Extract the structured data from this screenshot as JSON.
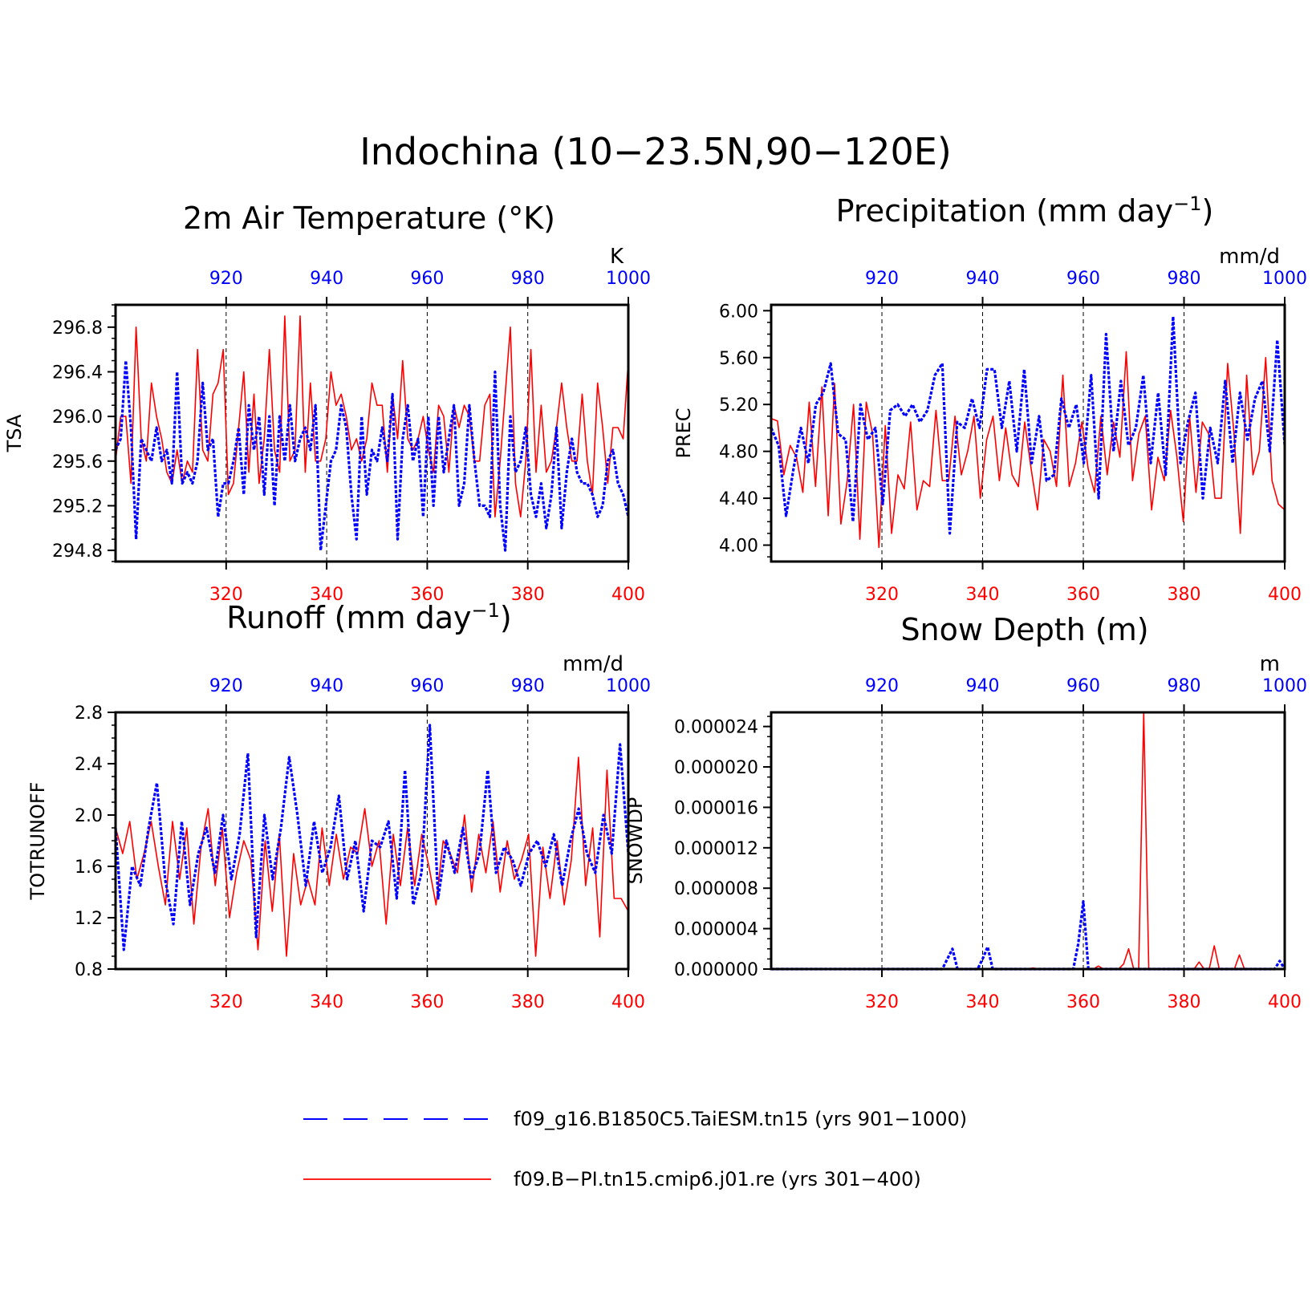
{
  "title": "Indochina (10−23.5N,90−120E)",
  "colors": {
    "series_blue": "#0000ff",
    "series_red": "#ff0000",
    "axis": "#000000"
  },
  "legend": [
    {
      "label": "f09_g16.B1850C5.TaiESM.tn15 (yrs 901−1000)",
      "color": "#0000ff",
      "style": "dashed"
    },
    {
      "label": "f09.B−PI.tn15.cmip6.j01.re (yrs 301−400)",
      "color": "#ff0000",
      "style": "solid"
    }
  ],
  "chart_data": [
    {
      "type": "line",
      "title": "2m Air Temperature (°K)",
      "ylabel": "TSA",
      "units": "K",
      "ylim": [
        294.7,
        297.0
      ],
      "yticks": [
        "294.8",
        "295.2",
        "295.6",
        "296.0",
        "296.4",
        "296.8"
      ],
      "x_bottom": {
        "range": [
          298,
          400
        ],
        "ticks": [
          320,
          340,
          360,
          380,
          400
        ]
      },
      "x_top": {
        "range": [
          898,
          1000
        ],
        "ticks": [
          920,
          940,
          960,
          980,
          1000
        ]
      },
      "grid": "dashed vertical",
      "series": [
        {
          "name": "f09.B−PI.tn15.cmip6.j01.re (yrs 301−400)",
          "axis": "bottom",
          "color": "#ff0000",
          "x_start": 298,
          "values": [
            295.6,
            296.0,
            296.0,
            295.4,
            296.8,
            295.8,
            295.6,
            296.3,
            296.0,
            295.8,
            295.5,
            295.4,
            295.7,
            295.4,
            295.6,
            295.5,
            296.6,
            295.7,
            295.6,
            296.2,
            296.3,
            296.6,
            295.3,
            295.4,
            295.9,
            296.4,
            295.5,
            296.2,
            295.4,
            295.8,
            296.6,
            295.7,
            295.5,
            296.9,
            295.6,
            295.7,
            296.9,
            295.5,
            296.3,
            295.6,
            295.6,
            295.8,
            296.4,
            296.1,
            296.2,
            296.0,
            295.7,
            295.8,
            295.6,
            295.8,
            296.3,
            296.1,
            296.1,
            295.5,
            296.2,
            295.8,
            296.5,
            295.8,
            295.7,
            295.8,
            296.0,
            295.7,
            295.5,
            296.1,
            296.0,
            295.5,
            296.1,
            295.9,
            296.1,
            296.0,
            295.6,
            295.6,
            296.1,
            296.2,
            295.1,
            295.6,
            296.2,
            296.8,
            295.4,
            295.1,
            295.6,
            296.6,
            295.5,
            296.1,
            295.5,
            295.6,
            295.9,
            296.3,
            295.9,
            295.6,
            295.6,
            296.2,
            295.6,
            295.3,
            296.3,
            295.9,
            295.4,
            295.9,
            295.9,
            295.8,
            296.5
          ]
        },
        {
          "name": "f09_g16.B1850C5.TaiESM.tn15 (yrs 901−1000)",
          "axis": "top",
          "color": "#0000ff",
          "x_start": 898,
          "values": [
            295.7,
            295.8,
            296.5,
            295.9,
            294.9,
            295.8,
            295.7,
            295.6,
            295.9,
            295.6,
            295.7,
            295.4,
            296.4,
            295.4,
            295.5,
            295.4,
            295.6,
            296.3,
            295.7,
            295.8,
            295.1,
            295.4,
            295.4,
            295.6,
            295.9,
            295.3,
            296.1,
            295.7,
            296.0,
            295.3,
            296.0,
            295.2,
            296.0,
            295.6,
            296.1,
            295.6,
            295.8,
            295.9,
            295.7,
            296.1,
            294.8,
            295.2,
            295.6,
            295.7,
            296.1,
            295.9,
            295.3,
            294.9,
            296.0,
            295.3,
            295.7,
            295.6,
            295.9,
            295.6,
            296.2,
            294.9,
            295.8,
            296.1,
            295.6,
            295.8,
            295.1,
            296.0,
            295.2,
            296.0,
            295.5,
            295.8,
            296.1,
            295.2,
            295.4,
            296.1,
            295.6,
            295.2,
            295.2,
            295.1,
            296.4,
            295.2,
            294.8,
            296.0,
            295.5,
            295.6,
            295.9,
            295.3,
            295.1,
            295.4,
            295.0,
            295.3,
            295.9,
            295.0,
            295.5,
            295.8,
            295.5,
            295.4,
            295.4,
            295.3,
            295.1,
            295.2,
            295.6,
            295.7,
            295.4,
            295.3,
            295.1
          ]
        }
      ]
    },
    {
      "type": "line",
      "title": "Precipitation (mm day⁻¹)",
      "ylabel": "PREC",
      "units": "mm/d",
      "ylim": [
        3.86,
        6.05
      ],
      "yticks": [
        "4.00",
        "4.40",
        "4.80",
        "5.20",
        "5.60",
        "6.00"
      ],
      "x_bottom": {
        "range": [
          298,
          400
        ],
        "ticks": [
          320,
          340,
          360,
          380,
          400
        ]
      },
      "x_top": {
        "range": [
          898,
          1000
        ],
        "ticks": [
          920,
          940,
          960,
          980,
          1000
        ]
      },
      "grid": "dashed vertical",
      "series": [
        {
          "name": "f09.B−PI.tn15.cmip6.j01.re (yrs 301−400)",
          "axis": "bottom",
          "color": "#ff0000",
          "x_start": 298,
          "values": [
            5.08,
            5.06,
            4.6,
            4.85,
            4.75,
            4.45,
            5.22,
            4.5,
            5.35,
            4.25,
            5.38,
            4.18,
            4.55,
            5.2,
            4.05,
            5.22,
            4.95,
            3.98,
            5.02,
            4.1,
            4.6,
            4.48,
            5.05,
            4.3,
            4.55,
            4.5,
            5.15,
            4.55,
            4.55,
            5.1,
            4.6,
            4.8,
            5.1,
            4.4,
            4.9,
            5.1,
            4.55,
            5.0,
            4.6,
            4.5,
            5.05,
            4.65,
            4.3,
            4.9,
            4.8,
            4.5,
            5.45,
            4.5,
            4.7,
            5.05,
            4.65,
            4.45,
            5.1,
            4.6,
            5.05,
            4.75,
            5.65,
            4.55,
            4.95,
            5.1,
            4.3,
            4.75,
            4.55,
            5.15,
            4.75,
            4.2,
            5.1,
            4.45,
            5.05,
            4.95,
            4.4,
            4.4,
            5.55,
            4.95,
            4.1,
            5.45,
            4.6,
            4.8,
            5.6,
            4.55,
            4.35,
            4.3
          ]
        },
        {
          "name": "f09_g16.B1850C5.TaiESM.tn15 (yrs 901−1000)",
          "axis": "top",
          "color": "#0000ff",
          "x_start": 898,
          "values": [
            5.0,
            4.85,
            4.25,
            4.65,
            5.0,
            4.7,
            5.2,
            5.3,
            5.55,
            4.95,
            4.9,
            4.2,
            5.2,
            4.9,
            5.0,
            4.35,
            5.15,
            5.2,
            5.1,
            5.2,
            5.05,
            5.15,
            5.45,
            5.55,
            4.1,
            5.05,
            5.0,
            5.25,
            5.0,
            5.5,
            5.5,
            5.0,
            5.4,
            4.8,
            5.5,
            4.7,
            5.1,
            4.55,
            4.6,
            5.25,
            5.0,
            5.2,
            4.7,
            5.45,
            4.4,
            5.8,
            4.8,
            5.4,
            4.85,
            5.0,
            5.45,
            4.7,
            5.3,
            4.6,
            5.95,
            4.7,
            5.05,
            5.3,
            4.4,
            5.0,
            4.7,
            5.4,
            4.7,
            5.3,
            4.9,
            5.25,
            5.4,
            4.8,
            5.75,
            4.85
          ]
        }
      ]
    },
    {
      "type": "line",
      "title": "Runoff (mm day⁻¹)",
      "ylabel": "TOTRUNOFF",
      "units": "mm/d",
      "ylim": [
        0.8,
        2.8
      ],
      "yticks": [
        "0.8",
        "1.2",
        "1.6",
        "2.0",
        "2.4",
        "2.8"
      ],
      "x_bottom": {
        "range": [
          298,
          400
        ],
        "ticks": [
          320,
          340,
          360,
          380,
          400
        ]
      },
      "x_top": {
        "range": [
          898,
          1000
        ],
        "ticks": [
          920,
          940,
          960,
          980,
          1000
        ]
      },
      "grid": "dashed vertical",
      "series": [
        {
          "name": "f09.B−PI.tn15.cmip6.j01.re (yrs 301−400)",
          "axis": "bottom",
          "color": "#ff0000",
          "x_start": 298,
          "values": [
            1.9,
            1.7,
            1.95,
            1.5,
            1.7,
            1.95,
            1.6,
            1.3,
            1.95,
            1.5,
            1.9,
            1.15,
            1.75,
            2.05,
            1.45,
            1.9,
            1.2,
            1.55,
            1.8,
            1.65,
            0.95,
            1.8,
            1.25,
            1.85,
            0.9,
            1.7,
            1.3,
            1.5,
            1.3,
            1.9,
            1.45,
            1.85,
            1.5,
            1.75,
            1.7,
            2.05,
            1.6,
            1.8,
            1.15,
            1.85,
            1.45,
            1.9,
            1.45,
            1.85,
            1.6,
            1.3,
            1.8,
            1.7,
            1.55,
            2.0,
            1.4,
            1.85,
            1.55,
            1.95,
            1.4,
            1.8,
            1.5,
            1.65,
            1.85,
            0.9,
            1.75,
            1.35,
            1.8,
            1.3,
            1.65,
            2.45,
            1.45,
            1.9,
            1.05,
            2.35,
            1.35,
            1.35,
            1.25
          ]
        },
        {
          "name": "f09_g16.B1850C5.TaiESM.tn15 (yrs 901−1000)",
          "axis": "top",
          "color": "#0000ff",
          "x_start": 898,
          "values": [
            1.9,
            0.95,
            1.6,
            1.45,
            1.9,
            2.25,
            1.5,
            1.15,
            1.95,
            1.3,
            1.7,
            1.9,
            1.55,
            2.0,
            1.5,
            1.85,
            2.48,
            1.05,
            2.0,
            1.5,
            1.9,
            2.45,
            2.0,
            1.45,
            1.95,
            1.55,
            1.75,
            2.15,
            1.5,
            1.8,
            1.25,
            1.8,
            1.75,
            1.95,
            1.35,
            2.35,
            1.3,
            1.55,
            2.7,
            1.35,
            1.8,
            1.55,
            1.9,
            1.5,
            1.7,
            2.35,
            1.55,
            1.75,
            1.65,
            1.45,
            1.7,
            1.8,
            1.6,
            1.85,
            1.45,
            1.8,
            2.05,
            1.7,
            1.55,
            2.0,
            1.7,
            2.55,
            1.7
          ]
        }
      ]
    },
    {
      "type": "line",
      "title": "Snow Depth (m)",
      "ylabel": "SNOWDP",
      "units": "m",
      "ylim": [
        0.0,
        2.54e-05
      ],
      "yticks": [
        "0.000000",
        "0.000004",
        "0.000008",
        "0.000012",
        "0.000016",
        "0.000020",
        "0.000024"
      ],
      "x_bottom": {
        "range": [
          298,
          400
        ],
        "ticks": [
          320,
          340,
          360,
          380,
          400
        ]
      },
      "x_top": {
        "range": [
          898,
          1000
        ],
        "ticks": [
          920,
          940,
          960,
          980,
          1000
        ]
      },
      "grid": "dashed vertical",
      "series": [
        {
          "name": "f09.B−PI.tn15.cmip6.j01.re (yrs 301−400)",
          "axis": "bottom",
          "color": "#ff0000",
          "x_points": [
            298,
            349,
            350,
            351,
            362,
            363,
            364,
            367,
            368,
            369,
            370,
            371,
            372,
            373,
            374,
            382,
            383,
            384,
            385,
            386,
            387,
            390,
            391,
            392,
            400
          ],
          "values": [
            0,
            0,
            1e-07,
            0,
            0,
            3e-07,
            0,
            0,
            5e-07,
            2e-06,
            0,
            0,
            2.54e-05,
            0,
            0,
            0,
            7e-07,
            0,
            0,
            2.3e-06,
            0,
            0,
            1.4e-06,
            0,
            0
          ]
        },
        {
          "name": "f09_g16.B1850C5.TaiESM.tn15 (yrs 901−1000)",
          "axis": "top",
          "color": "#0000ff",
          "x_points": [
            898,
            932,
            933,
            934,
            935,
            939,
            940,
            941,
            942,
            958,
            959,
            960,
            961,
            962,
            998,
            999,
            1000
          ],
          "values": [
            0,
            0,
            1e-06,
            2e-06,
            0,
            0,
            1e-06,
            2.2e-06,
            0,
            0,
            2.5e-06,
            6.7e-06,
            0,
            0,
            0,
            8e-07,
            0
          ]
        }
      ]
    }
  ]
}
